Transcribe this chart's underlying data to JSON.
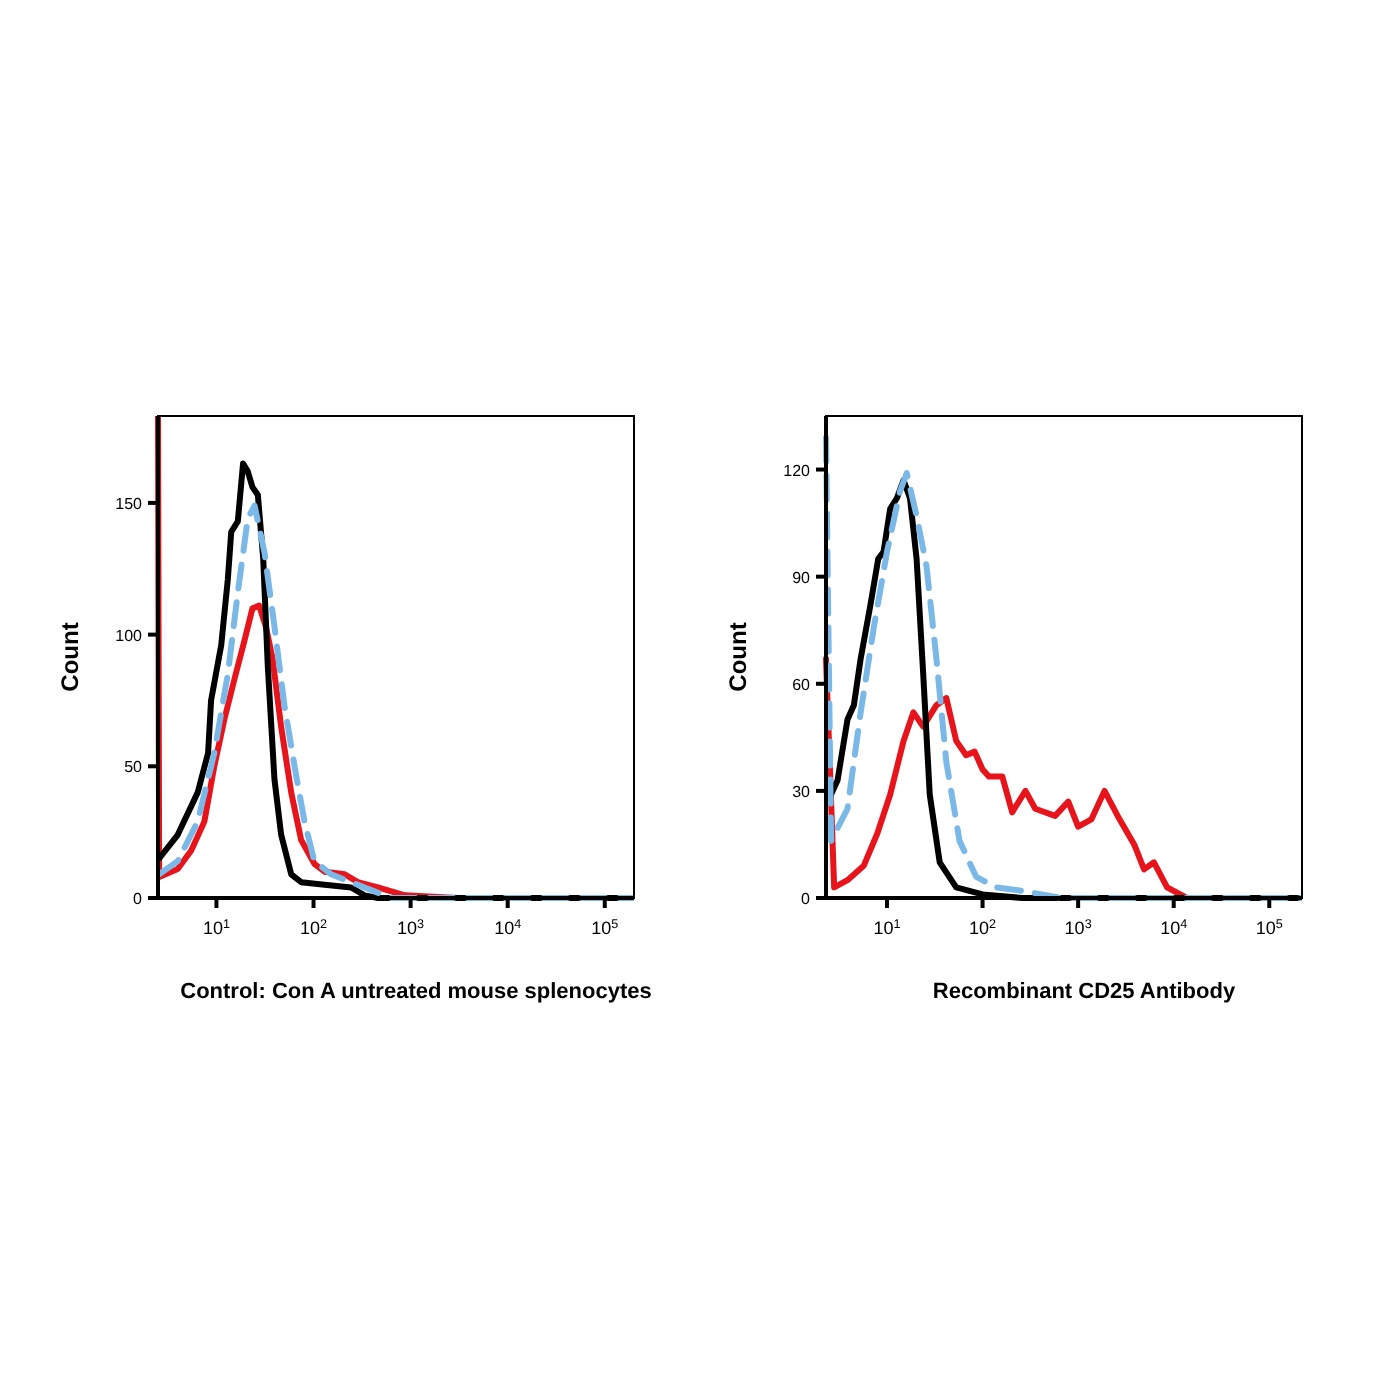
{
  "chart_data": [
    {
      "type": "line",
      "xlabel": "Control: Con A untreated mouse splenocytes",
      "ylabel": "Count",
      "log": "x",
      "xlim": [
        2.5,
        200000
      ],
      "ylim": [
        0,
        183
      ],
      "xticks": [
        {
          "value": 10,
          "label": "10$^{1}$"
        },
        {
          "value": 100,
          "label": "10$^{2}$"
        },
        {
          "value": 1000,
          "label": "10$^{3}$"
        },
        {
          "value": 10000,
          "label": "10$^{4}$"
        },
        {
          "value": 100000,
          "label": "10$^{5}$"
        }
      ],
      "yticks": [
        0,
        50,
        100,
        150
      ],
      "grid": false,
      "series": [
        {
          "color": "#e8141b",
          "line_style": "solid",
          "x": [
            2.5,
            2.57,
            3.99,
            5.5,
            7.5,
            9.5,
            12.1,
            15.3,
            19.5,
            23.5,
            27.5,
            32.3,
            37.8,
            46.4,
            58.9,
            74.6,
            102,
            130,
            209,
            286,
            461,
            871,
            3090,
            200000
          ],
          "values": [
            183,
            8,
            11,
            18,
            29,
            50,
            68,
            83,
            98,
            110,
            111,
            103,
            91,
            65,
            40,
            22,
            13,
            10,
            9,
            6,
            4,
            1,
            0,
            0
          ]
        },
        {
          "color": "#000000",
          "line_style": "solid",
          "x": [
            2.57,
            3.99,
            6.4,
            8.2,
            8.8,
            11.2,
            13.1,
            14.2,
            16.6,
            18.8,
            21,
            23.5,
            26.7,
            30.3,
            33.8,
            39.6,
            46.4,
            58.9,
            74.6,
            130,
            244,
            336,
            461,
            2240,
            200000
          ],
          "values": [
            15,
            24,
            40,
            55,
            75,
            96,
            121,
            139,
            143,
            165,
            162,
            156,
            153,
            129,
            88,
            45,
            24,
            9,
            6,
            5,
            4,
            1,
            0,
            0,
            0
          ]
        },
        {
          "color": "#7ab8e8",
          "line_style": "dashed",
          "x": [
            2.57,
            3.99,
            6.4,
            9.5,
            13.1,
            16.6,
            21,
            24.7,
            31.3,
            39.6,
            50.2,
            63.7,
            80.7,
            102,
            152,
            336,
            631,
            200000
          ],
          "values": [
            9,
            14,
            29,
            55,
            85,
            116,
            144,
            149,
            131,
            103,
            73,
            50,
            29,
            14,
            9,
            4,
            0,
            0
          ]
        }
      ]
    },
    {
      "type": "line",
      "xlabel": "Recombinant CD25 Antibody",
      "ylabel": "Count",
      "log": "x",
      "xlim": [
        2.3,
        220000
      ],
      "ylim": [
        0,
        135
      ],
      "xticks": [
        {
          "value": 10,
          "label": "10$^{1}$"
        },
        {
          "value": 100,
          "label": "10$^{2}$"
        },
        {
          "value": 1000,
          "label": "10$^{3}$"
        },
        {
          "value": 10000,
          "label": "10$^{4}$"
        },
        {
          "value": 100000,
          "label": "10$^{5}$"
        }
      ],
      "yticks": [
        0,
        30,
        60,
        90,
        120
      ],
      "grid": false,
      "series": [
        {
          "color": "#e8141b",
          "line_style": "solid",
          "x": [
            2.3,
            2.8,
            3.86,
            5.7,
            7.9,
            10.8,
            14.9,
            18.9,
            23.9,
            32.9,
            41.8,
            53,
            67.3,
            82.6,
            100,
            117,
            161,
            204,
            281,
            356,
            574,
            789,
            1000,
            1374,
            1888,
            2594,
            3857,
            4898,
            6209,
            8531,
            13740,
            220000
          ],
          "values": [
            67,
            3,
            5,
            9,
            18,
            29,
            44,
            52,
            48,
            54,
            56,
            44,
            40,
            41,
            36,
            34,
            34,
            24,
            30,
            25,
            23,
            27,
            20,
            22,
            30,
            23,
            15,
            8,
            10,
            3,
            0,
            0
          ]
        },
        {
          "color": "#000000",
          "line_style": "solid",
          "x": [
            2.6,
            3.04,
            3.86,
            4.5,
            5.3,
            6.7,
            8.1,
            9.2,
            10.8,
            12.7,
            14.9,
            17.4,
            20.4,
            23.9,
            28,
            35.6,
            53,
            100,
            259,
            220000
          ],
          "values": [
            29,
            33,
            50,
            54,
            67,
            82,
            95,
            97,
            109,
            112,
            117,
            112,
            95,
            63,
            29,
            10,
            3,
            1,
            0,
            0
          ]
        },
        {
          "color": "#7ab8e8",
          "line_style": "dashed",
          "x": [
            2.3,
            2.6,
            3.86,
            5.3,
            7.3,
            10,
            13.7,
            16.1,
            20.4,
            25.9,
            32.9,
            41.8,
            57.4,
            85.4,
            137,
            259,
            673,
            220000
          ],
          "values": [
            129,
            16,
            25,
            52,
            76,
            97,
            114,
            119,
            107,
            93,
            67,
            38,
            16,
            6,
            3,
            2,
            0,
            0
          ]
        }
      ]
    }
  ]
}
